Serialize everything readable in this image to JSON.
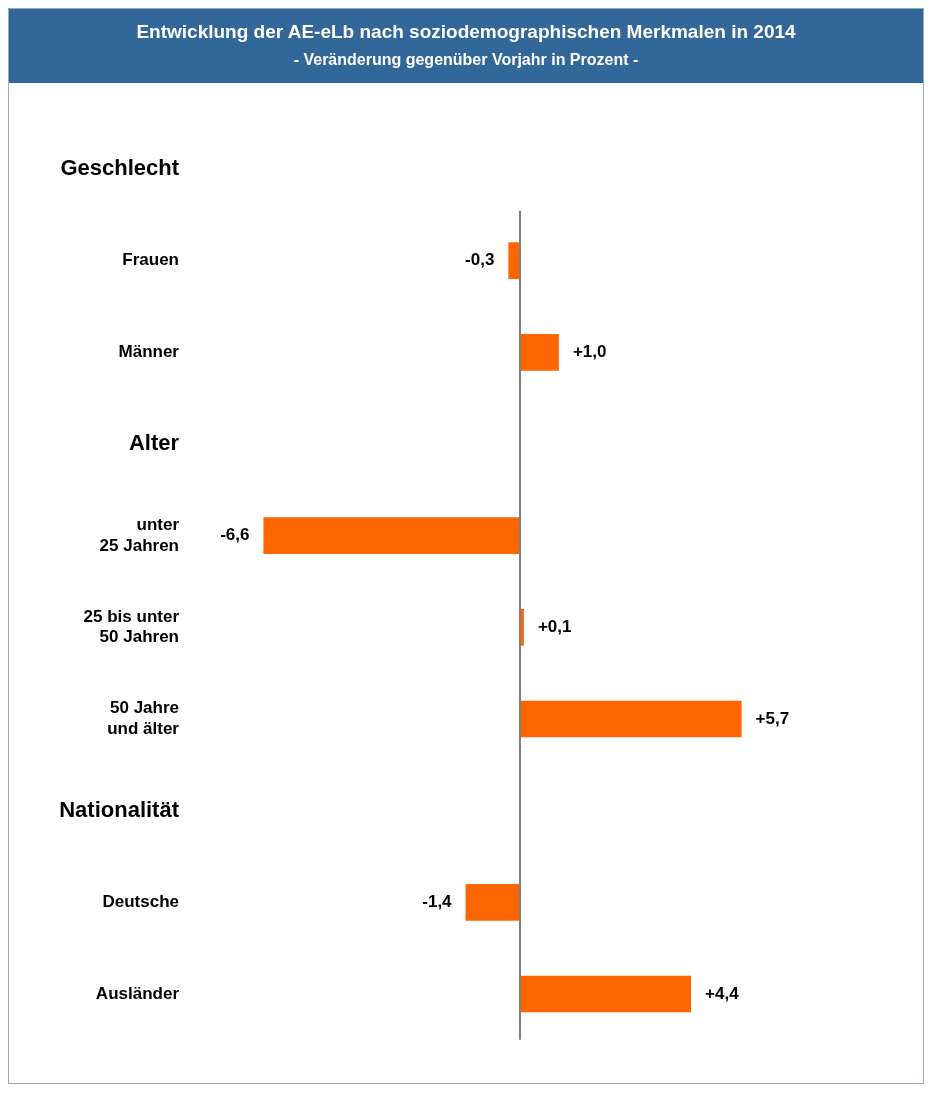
{
  "chart_data": {
    "type": "bar",
    "orientation": "horizontal",
    "title": "Entwicklung der AE-eLb nach soziodemographischen Merkmalen in 2014",
    "subtitle": "- Veränderung gegenüber Vorjahr in Prozent -",
    "categories": [
      "Geschlecht",
      "Frauen",
      "Männer",
      "Alter",
      "unter\n25 Jahren",
      "25 bis unter\n50 Jahren",
      "50 Jahre\nund älter",
      "Nationalität",
      "Deutsche",
      "Ausländer"
    ],
    "values": [
      null,
      -0.3,
      1.0,
      null,
      -6.6,
      0.1,
      5.7,
      null,
      -1.4,
      4.4
    ],
    "value_labels": [
      null,
      "-0,3",
      "+1,0",
      null,
      "-6,6",
      "+0,1",
      "+5,7",
      null,
      "-1,4",
      "+4,4"
    ],
    "color": "#ff6600",
    "legend": false,
    "grid": false
  }
}
